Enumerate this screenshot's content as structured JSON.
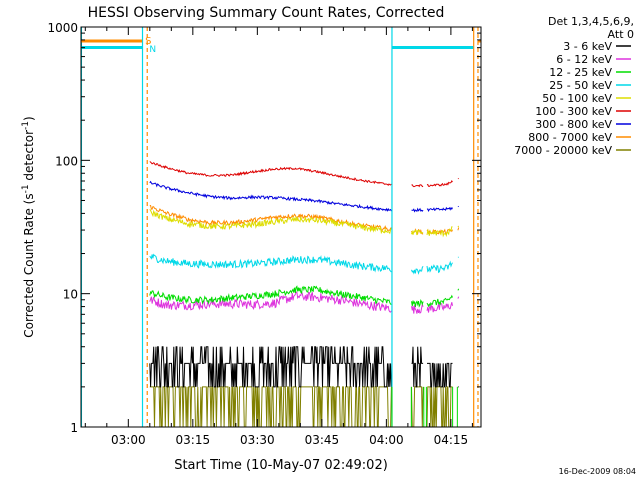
{
  "chart_data": {
    "type": "line",
    "title": "HESSI Observing Summary Count Rates, Corrected",
    "xlabel": "Start Time (10-May-07 02:49:02)",
    "ylabel_main": "Corrected Count Rate (s",
    "ylabel_sup1": "-1",
    "ylabel_mid": " detector",
    "ylabel_sup2": "-1",
    "ylabel_end": ")",
    "yscale": "log",
    "ylim": [
      1,
      1000
    ],
    "xlim_minutes": [
      0,
      93
    ],
    "x_ticks": [
      {
        "label": "03:00",
        "minute": 11
      },
      {
        "label": "03:15",
        "minute": 26
      },
      {
        "label": "03:30",
        "minute": 41
      },
      {
        "label": "03:45",
        "minute": 56
      },
      {
        "label": "04:00",
        "minute": 71
      },
      {
        "label": "04:15",
        "minute": 86
      }
    ],
    "y_ticks": [
      {
        "label": "1",
        "value": 1
      },
      {
        "label": "10",
        "value": 10
      },
      {
        "label": "100",
        "value": 100
      },
      {
        "label": "1000",
        "value": 1000
      }
    ],
    "legend": {
      "header1": "Det 1,3,4,5,6,9,",
      "header2": "Att 0",
      "placement": "right"
    },
    "flags": [
      {
        "label": "S",
        "color": "#ff8c00"
      },
      {
        "label": "N",
        "color": "#00d8e8"
      }
    ],
    "footer_timestamp": "16-Dec-2009 08:04",
    "data_gaps_minutes": [
      [
        72.3,
        76.8
      ],
      [
        79.7,
        80.3
      ],
      [
        86.4,
        87.5
      ]
    ],
    "series": [
      {
        "name": "3 - 6 keV",
        "color": "#000000",
        "x": [
          16,
          18,
          20,
          25,
          30,
          35,
          40,
          45,
          50,
          55,
          60,
          65,
          70,
          75,
          80,
          85,
          88
        ],
        "values": [
          3.4,
          3.3,
          3.0,
          2.8,
          2.8,
          2.8,
          2.8,
          2.8,
          3.0,
          3.3,
          2.9,
          2.8,
          2.8,
          2.6,
          2.6,
          2.6,
          2.8
        ]
      },
      {
        "name": "6 - 12 keV",
        "color": "#dd33dd",
        "x": [
          16,
          20,
          25,
          30,
          35,
          40,
          45,
          50,
          55,
          60,
          65,
          70,
          75,
          80,
          85,
          88
        ],
        "values": [
          9.0,
          8.2,
          8.2,
          8.4,
          8.4,
          8.3,
          8.5,
          9.6,
          9.4,
          9.0,
          8.4,
          7.9,
          7.6,
          7.7,
          7.9,
          9.0
        ]
      },
      {
        "name": "12 - 25 keV",
        "color": "#00dd00",
        "x": [
          16,
          20,
          25,
          30,
          35,
          40,
          45,
          50,
          55,
          60,
          65,
          70,
          75,
          80,
          85,
          88
        ],
        "values": [
          10.2,
          9.4,
          9.0,
          9.0,
          9.3,
          9.6,
          10.0,
          10.7,
          10.7,
          10.0,
          9.4,
          8.8,
          8.3,
          8.5,
          8.7,
          10.8
        ]
      },
      {
        "name": "25 - 50 keV",
        "color": "#00d8e8",
        "x": [
          16,
          20,
          25,
          30,
          35,
          40,
          45,
          50,
          55,
          60,
          65,
          70,
          75,
          80,
          85,
          88
        ],
        "values": [
          19.0,
          17.5,
          16.8,
          16.6,
          16.6,
          16.8,
          17.3,
          18.0,
          18.0,
          17.0,
          16.1,
          15.6,
          15.0,
          15.2,
          15.5,
          19.0
        ]
      },
      {
        "name": "50 - 100 keV",
        "color": "#dddd00",
        "x": [
          16,
          20,
          25,
          30,
          35,
          40,
          45,
          50,
          55,
          60,
          65,
          70,
          75,
          80,
          85,
          88
        ],
        "values": [
          41.0,
          36.5,
          33.5,
          32.0,
          32.0,
          33.0,
          34.5,
          36.0,
          35.5,
          33.5,
          31.5,
          30.0,
          29.0,
          28.5,
          28.5,
          33.0
        ]
      },
      {
        "name": "100 - 300 keV",
        "color": "#dd0000",
        "x": [
          16,
          20,
          25,
          30,
          35,
          40,
          45,
          50,
          55,
          60,
          65,
          70,
          75,
          80,
          85,
          88
        ],
        "values": [
          97.0,
          88.0,
          80.0,
          77.0,
          77.5,
          82.0,
          86.0,
          87.0,
          82.0,
          76.0,
          71.0,
          67.0,
          64.5,
          64.5,
          66.0,
          74.0
        ]
      },
      {
        "name": "300 - 800 keV",
        "color": "#0000dd",
        "x": [
          16,
          20,
          25,
          30,
          35,
          40,
          45,
          50,
          55,
          60,
          65,
          70,
          75,
          80,
          85,
          88
        ],
        "values": [
          68.0,
          62.0,
          57.0,
          53.5,
          52.0,
          53.0,
          52.5,
          51.0,
          49.5,
          47.0,
          45.0,
          43.0,
          42.0,
          42.5,
          43.0,
          45.0
        ]
      },
      {
        "name": "800 - 7000 keV",
        "color": "#ff8c00",
        "x": [
          16,
          20,
          25,
          30,
          35,
          40,
          45,
          50,
          55,
          60,
          65,
          70,
          75,
          80,
          85,
          88
        ],
        "values": [
          45.0,
          40.0,
          36.0,
          34.0,
          34.0,
          35.5,
          37.5,
          38.5,
          37.5,
          35.0,
          32.5,
          31.0,
          29.5,
          29.0,
          29.0,
          31.0
        ]
      },
      {
        "name": "7000 - 20000 keV",
        "color": "#808000",
        "x": [
          16,
          20,
          25,
          30,
          35,
          40,
          45,
          50,
          55,
          60,
          65,
          70,
          75,
          80,
          85,
          88
        ],
        "values": [
          2.0,
          1.8,
          1.7,
          1.7,
          1.7,
          1.7,
          1.7,
          1.75,
          1.8,
          1.7,
          1.7,
          1.7,
          1.6,
          1.6,
          1.6,
          1.8
        ]
      }
    ]
  }
}
